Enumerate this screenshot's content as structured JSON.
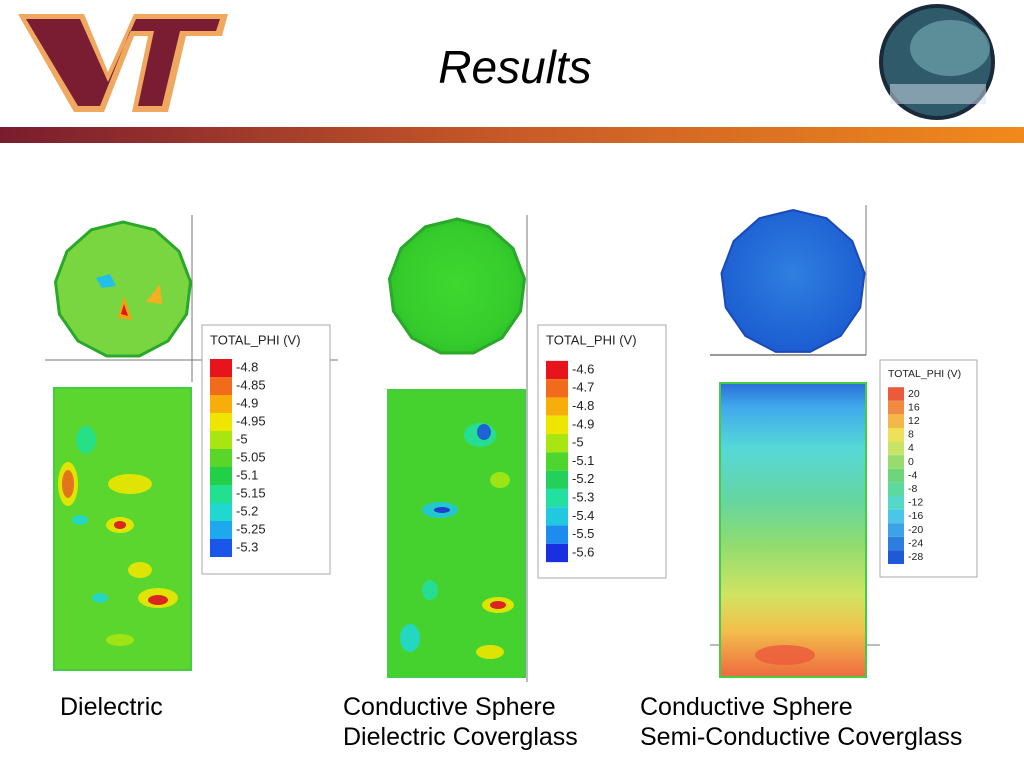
{
  "header": {
    "title": "Results"
  },
  "panels": [
    {
      "legend": {
        "title": "TOTAL_PHI (V)",
        "labels": [
          "-4.8",
          "-4.85",
          "-4.9",
          "-4.95",
          "-5",
          "-5.05",
          "-5.1",
          "-5.15",
          "-5.2",
          "-5.25",
          "-5.3"
        ],
        "colors": [
          "#e8141c",
          "#f26a1c",
          "#f7ad0a",
          "#eee600",
          "#a8e612",
          "#5ad62a",
          "#22d048",
          "#22e08e",
          "#20d8d0",
          "#1ea8ee",
          "#1a56e8"
        ]
      },
      "caption": [
        "Dielectric"
      ]
    },
    {
      "legend": {
        "title": "TOTAL_PHI (V)",
        "labels": [
          "-4.6",
          "-4.7",
          "-4.8",
          "-4.9",
          "-5",
          "-5.1",
          "-5.2",
          "-5.3",
          "-5.4",
          "-5.5",
          "-5.6"
        ],
        "colors": [
          "#e8141c",
          "#f26a1c",
          "#f7ad0a",
          "#eee600",
          "#a8e612",
          "#4cd62e",
          "#22d05a",
          "#22e0a0",
          "#20c8e0",
          "#1e8cee",
          "#1a30e0"
        ]
      },
      "caption": [
        "Conductive Sphere",
        "Dielectric Coverglass"
      ]
    },
    {
      "legend": {
        "title": "TOTAL_PHI (V)",
        "labels": [
          "20",
          "16",
          "12",
          "8",
          "4",
          "0",
          "-4",
          "-8",
          "-12",
          "-16",
          "-20",
          "-24",
          "-28"
        ],
        "colors": [
          "#ec5a3c",
          "#f08a40",
          "#f4b84a",
          "#eee05a",
          "#c8e466",
          "#96dc6e",
          "#6ed67a",
          "#5cd8a0",
          "#56d8c8",
          "#4cc6e6",
          "#3ea2e6",
          "#2e7ee0",
          "#1e5ad6"
        ]
      },
      "caption": [
        "Conductive Sphere",
        "Semi-Conductive Coverglass"
      ]
    }
  ]
}
